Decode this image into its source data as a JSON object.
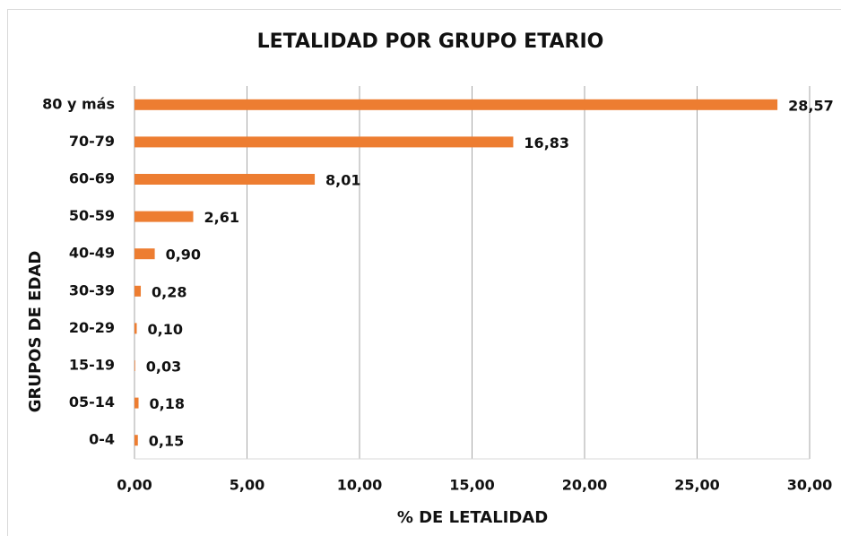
{
  "chart_data": {
    "type": "bar",
    "orientation": "horizontal",
    "title": "LETALIDAD POR GRUPO ETARIO",
    "x_label": "% DE LETALIDAD",
    "y_label": "GRUPOS DE EDAD",
    "categories": [
      "80 y más",
      "70-79",
      "60-69",
      "50-59",
      "40-49",
      "30-39",
      "20-29",
      "15-19",
      "05-14",
      "0-4"
    ],
    "values": [
      28.57,
      16.83,
      8.01,
      2.61,
      0.9,
      0.28,
      0.1,
      0.03,
      0.18,
      0.15
    ],
    "value_labels": [
      "28,57",
      "16,83",
      "8,01",
      "2,61",
      "0,90",
      "0,28",
      "0,10",
      "0,03",
      "0,18",
      "0,15"
    ],
    "color": "#ed7d31",
    "xlim": [
      0,
      30
    ],
    "xticks": [
      {
        "value": 0,
        "label": "0,00"
      },
      {
        "value": 5,
        "label": "5,00"
      },
      {
        "value": 10,
        "label": "10,00"
      },
      {
        "value": 15,
        "label": "15,00"
      },
      {
        "value": 20,
        "label": "20,00"
      },
      {
        "value": 25,
        "label": "25,00"
      },
      {
        "value": 30,
        "label": "30,00"
      }
    ],
    "grid": true
  }
}
